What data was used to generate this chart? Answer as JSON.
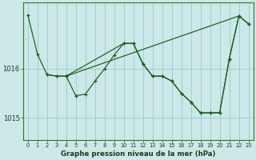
{
  "title": "Graphe pression niveau de la mer (hPa)",
  "background_color": "#cce8e8",
  "grid_color": "#99cccc",
  "line_color": "#1a5c1a",
  "xlim": [
    -0.5,
    23.5
  ],
  "ylim": [
    1014.55,
    1017.35
  ],
  "yticks": [
    1015,
    1016
  ],
  "xticks": [
    0,
    1,
    2,
    3,
    4,
    5,
    6,
    7,
    8,
    9,
    10,
    11,
    12,
    13,
    14,
    15,
    16,
    17,
    18,
    19,
    20,
    21,
    22,
    23
  ],
  "line1_x": [
    0,
    1,
    2,
    3,
    4
  ],
  "line1_y": [
    1017.1,
    1016.3,
    1015.88,
    1015.85,
    1015.85
  ],
  "line2_x": [
    2,
    3,
    4,
    5,
    6,
    7,
    8,
    9,
    10,
    11,
    12,
    13,
    14,
    15,
    16,
    17,
    18,
    19,
    20,
    21,
    22,
    23
  ],
  "line2_y": [
    1015.88,
    1015.85,
    1015.85,
    1015.45,
    1015.48,
    1015.75,
    1016.0,
    1016.28,
    1016.52,
    1016.52,
    1016.1,
    1015.85,
    1015.85,
    1015.75,
    1015.5,
    1015.32,
    1015.1,
    1015.1,
    1015.1,
    1016.2,
    1017.08,
    1016.92
  ],
  "line3_x": [
    4,
    10,
    11,
    12,
    13,
    14,
    15,
    16,
    17,
    18,
    19,
    20,
    21,
    22,
    23
  ],
  "line3_y": [
    1015.85,
    1016.52,
    1016.52,
    1016.1,
    1015.85,
    1015.85,
    1015.75,
    1015.5,
    1015.32,
    1015.1,
    1015.1,
    1015.1,
    1016.2,
    1017.08,
    1016.92
  ],
  "line4_x": [
    4,
    22
  ],
  "line4_y": [
    1015.85,
    1017.08
  ]
}
